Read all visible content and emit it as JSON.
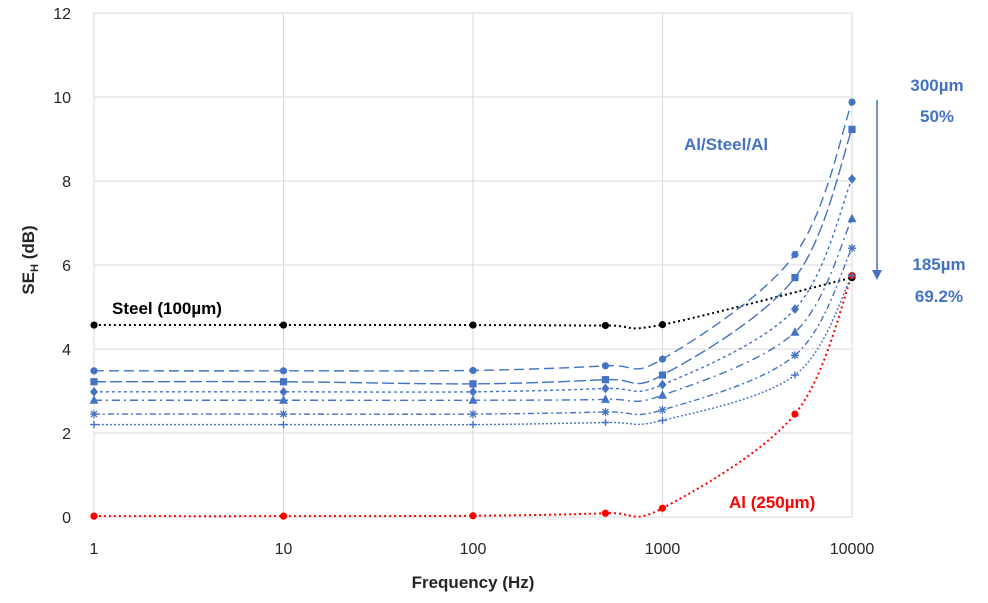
{
  "chart_data": {
    "type": "scatter",
    "xlabel": "Frequency (Hz)",
    "ylabel_main": "SE",
    "ylabel_sub": "H",
    "ylabel_tail": " (dB)",
    "xscale": "log",
    "xlim": [
      1,
      10000
    ],
    "ylim": [
      0,
      12
    ],
    "xticks": [
      "1",
      "10",
      "100",
      "1000",
      "10000"
    ],
    "yticks": [
      "0",
      "2",
      "4",
      "6",
      "8",
      "10",
      "12"
    ],
    "grid": true,
    "colors": {
      "steel": "#000000",
      "al": "#ff0000",
      "laminate": "#4472c4",
      "grid": "#d9d9d9"
    },
    "series": [
      {
        "id": "steel",
        "label": "Steel (100µm)",
        "color": "#000000",
        "marker": "circle",
        "dash": "2,3",
        "x": [
          1,
          10,
          100,
          500,
          1000,
          10000
        ],
        "y": [
          4.57,
          4.57,
          4.57,
          4.56,
          4.58,
          5.7
        ]
      },
      {
        "id": "al",
        "label": "Al (250µm)",
        "color": "#ff0000",
        "marker": "circle",
        "dash": "2,3",
        "x": [
          1,
          10,
          100,
          500,
          1000,
          5000,
          10000
        ],
        "y": [
          0.02,
          0.02,
          0.03,
          0.09,
          0.21,
          2.45,
          5.75
        ]
      },
      {
        "id": "lam1",
        "color": "#4472c4",
        "marker": "circle",
        "dash": "10,5",
        "x": [
          1,
          10,
          100,
          500,
          1000,
          5000,
          10000
        ],
        "y": [
          3.48,
          3.48,
          3.49,
          3.6,
          3.76,
          6.25,
          9.88
        ]
      },
      {
        "id": "lam2",
        "color": "#4472c4",
        "marker": "square",
        "dash": "12,4",
        "x": [
          1,
          10,
          100,
          500,
          1000,
          5000,
          10000
        ],
        "y": [
          3.22,
          3.22,
          3.17,
          3.27,
          3.38,
          5.7,
          9.23
        ]
      },
      {
        "id": "lam3",
        "color": "#4472c4",
        "marker": "diamond",
        "dash": "3,3",
        "x": [
          1,
          10,
          100,
          500,
          1000,
          5000,
          10000
        ],
        "y": [
          2.98,
          2.98,
          2.98,
          3.06,
          3.15,
          4.95,
          8.05
        ]
      },
      {
        "id": "lam4",
        "color": "#4472c4",
        "marker": "triangle",
        "dash": "8,4,2,4",
        "x": [
          1,
          10,
          100,
          500,
          1000,
          5000,
          10000
        ],
        "y": [
          2.78,
          2.78,
          2.78,
          2.8,
          2.9,
          4.4,
          7.1
        ]
      },
      {
        "id": "lam5",
        "color": "#4472c4",
        "marker": "star",
        "dash": "6,3,2,3",
        "x": [
          1,
          10,
          100,
          500,
          1000,
          5000,
          10000
        ],
        "y": [
          2.45,
          2.45,
          2.45,
          2.5,
          2.55,
          3.85,
          6.4
        ]
      },
      {
        "id": "lam6",
        "color": "#4472c4",
        "marker": "plus",
        "dash": "2,2",
        "x": [
          1,
          10,
          100,
          500,
          1000,
          5000,
          10000
        ],
        "y": [
          2.2,
          2.2,
          2.2,
          2.25,
          2.3,
          3.38,
          5.75
        ]
      }
    ],
    "annotations": {
      "steel": "Steel (100µm)",
      "al": "Al (250µm)",
      "laminate": "Al/Steel/Al",
      "top_thickness": "300µm",
      "top_percent": "50%",
      "bottom_thickness": "185µm",
      "bottom_percent": "69.2%"
    }
  }
}
